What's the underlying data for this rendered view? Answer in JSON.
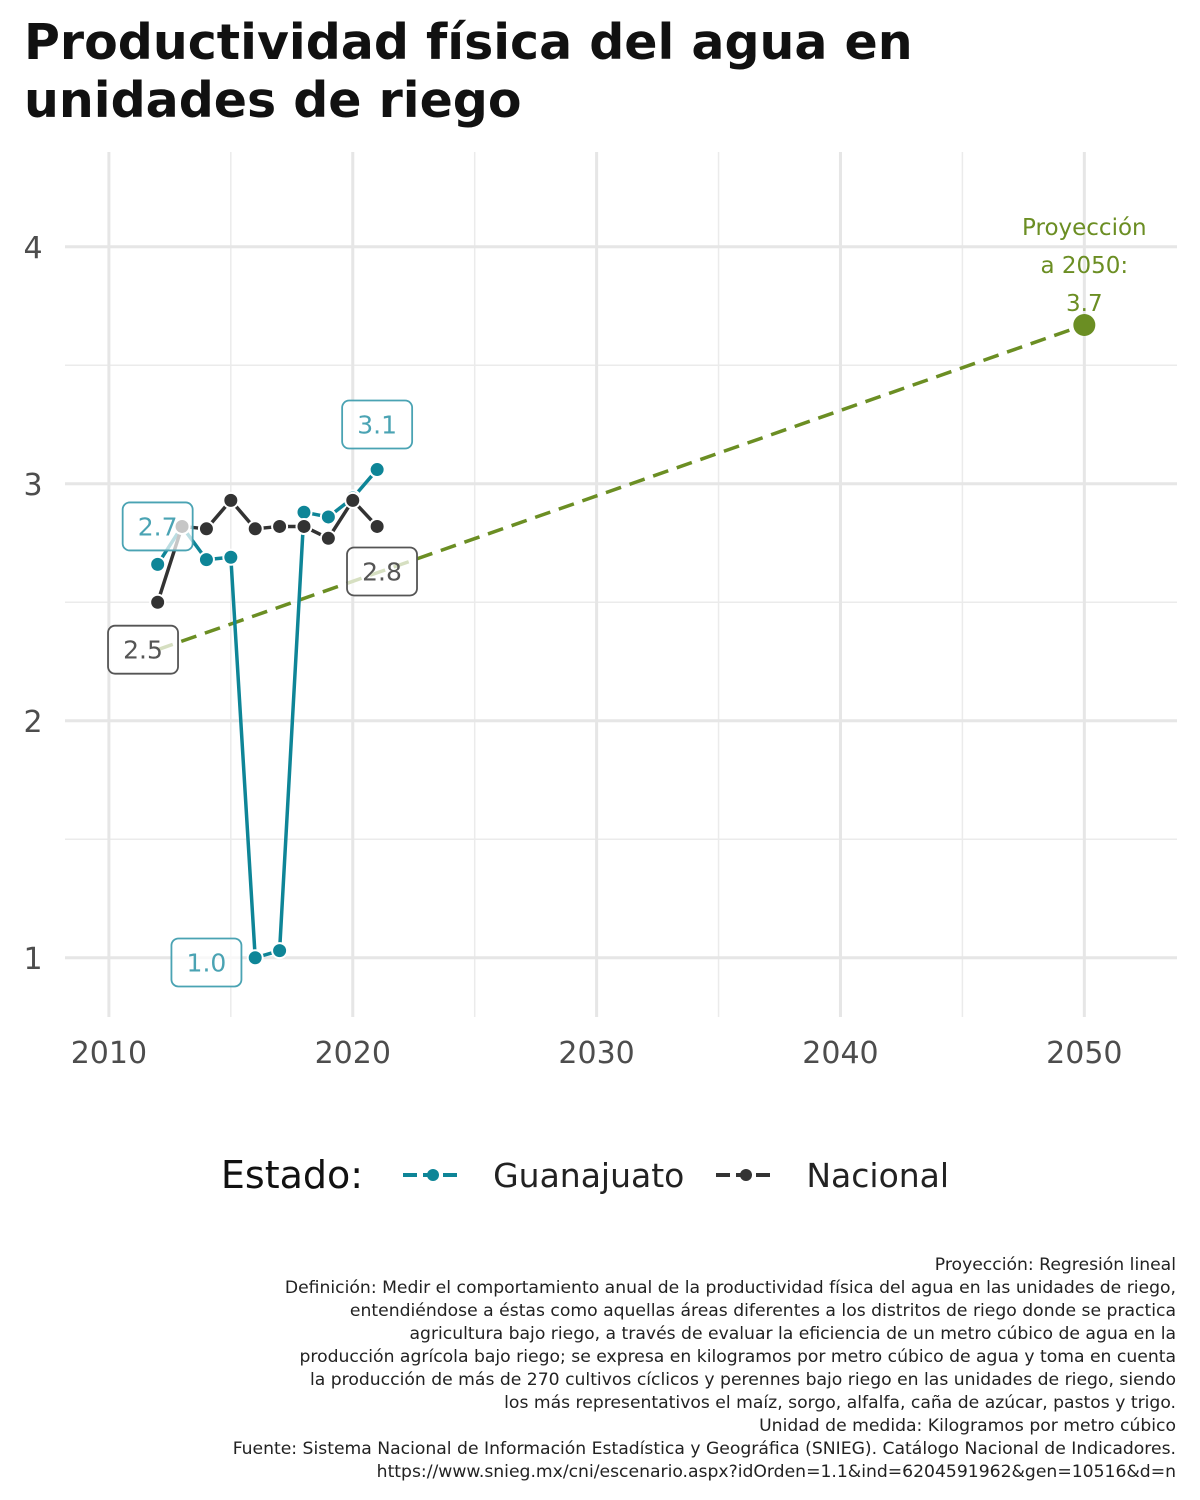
{
  "title_line1": "Productividad física del agua en",
  "title_line2": "unidades de riego",
  "chart_data": {
    "type": "line",
    "x_ticks": [
      2010,
      2020,
      2030,
      2040,
      2050
    ],
    "y_ticks": [
      1,
      2,
      3,
      4
    ],
    "xlim": [
      2008.2,
      2053.8
    ],
    "ylim": [
      0.75,
      4.4
    ],
    "grid": true,
    "legend_title": "Estado:",
    "legend_position": "bottom",
    "series": [
      {
        "name": "Guanajuato",
        "color": "#0e8597",
        "x": [
          2012,
          2013,
          2014,
          2015,
          2016,
          2017,
          2018,
          2019,
          2020,
          2021
        ],
        "y": [
          2.66,
          2.82,
          2.68,
          2.69,
          1.0,
          1.03,
          2.88,
          2.86,
          2.94,
          3.06
        ]
      },
      {
        "name": "Nacional",
        "color": "#333333",
        "x": [
          2012,
          2013,
          2014,
          2015,
          2016,
          2017,
          2018,
          2019,
          2020,
          2021
        ],
        "y": [
          2.5,
          2.82,
          2.81,
          2.93,
          2.81,
          2.82,
          2.82,
          2.77,
          2.93,
          2.82
        ]
      }
    ],
    "projection": {
      "color": "#6b8e23",
      "x": [
        2012,
        2050
      ],
      "y": [
        2.3,
        3.67
      ],
      "label_lines": [
        "Proyección",
        "a 2050:",
        "3.7"
      ]
    },
    "data_labels": [
      {
        "series": "Guanajuato",
        "x": 2012,
        "y": 2.82,
        "text": "2.7"
      },
      {
        "series": "Guanajuato",
        "x": 2014,
        "y": 0.98,
        "text": "1.0"
      },
      {
        "series": "Guanajuato",
        "x": 2021,
        "y": 3.25,
        "text": "3.1"
      },
      {
        "series": "Nacional",
        "x": 2011.4,
        "y": 2.3,
        "text": "2.5"
      },
      {
        "series": "Nacional",
        "x": 2021.2,
        "y": 2.63,
        "text": "2.8"
      }
    ]
  },
  "caption_lines": [
    "Proyección: Regresión lineal",
    "Definición: Medir el comportamiento anual de la productividad física del agua en las unidades de riego,",
    "entendiéndose a éstas como aquellas áreas diferentes a los distritos de riego donde se practica",
    "agricultura bajo riego, a través de evaluar la eficiencia de un metro cúbico de agua en la",
    "producción agrícola bajo riego; se expresa en kilogramos por metro cúbico de agua y toma en cuenta",
    "la producción de más de 270 cultivos cíclicos y perennes bajo riego en las unidades de riego, siendo",
    "los más representativos el maíz, sorgo, alfalfa, caña de azúcar, pastos y trigo.",
    "Unidad de medida: Kilogramos por metro cúbico",
    "Fuente: Sistema Nacional de Información Estadística y Geográfica (SNIEG). Catálogo Nacional de Indicadores.",
    "https://www.snieg.mx/cni/escenario.aspx?idOrden=1.1&ind=6204591962&gen=10516&d=n"
  ]
}
